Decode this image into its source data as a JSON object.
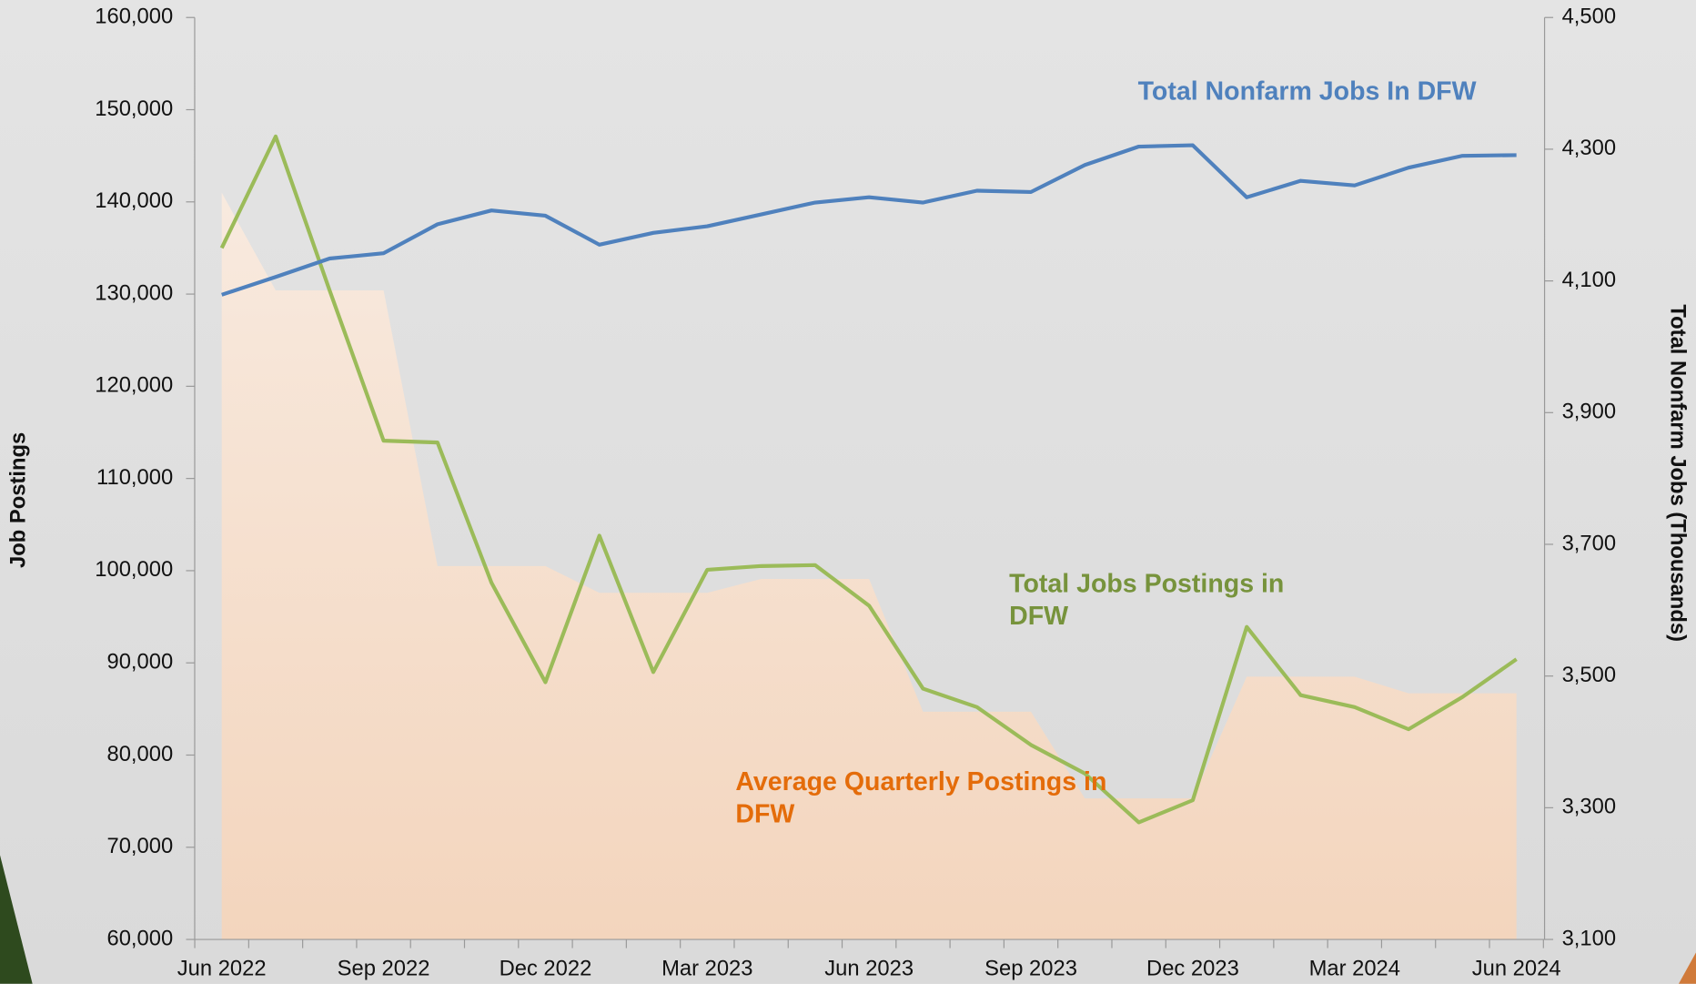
{
  "chart_data": {
    "type": "line",
    "categories": [
      "Jun 2022",
      null,
      null,
      "Sep 2022",
      null,
      null,
      "Dec 2022",
      null,
      null,
      "Mar 2023",
      null,
      null,
      "Jun 2023",
      null,
      null,
      "Sep 2023",
      null,
      null,
      "Dec 2023",
      null,
      null,
      "Mar 2024",
      null,
      null,
      "Jun 2024"
    ],
    "y_label": "Job Postings",
    "y2_label": "Total Nonfarm Jobs (Thousands)",
    "ylim": [
      60000,
      160000
    ],
    "yticks": [
      {
        "value": 60000,
        "label": "60,000"
      },
      {
        "value": 70000,
        "label": "70,000"
      },
      {
        "value": 80000,
        "label": "80,000"
      },
      {
        "value": 90000,
        "label": "90,000"
      },
      {
        "value": 100000,
        "label": "100,000"
      },
      {
        "value": 110000,
        "label": "110,000"
      },
      {
        "value": 120000,
        "label": "120,000"
      },
      {
        "value": 130000,
        "label": "130,000"
      },
      {
        "value": 140000,
        "label": "140,000"
      },
      {
        "value": 150000,
        "label": "150,000"
      },
      {
        "value": 160000,
        "label": "160,000"
      }
    ],
    "y2lim": [
      3100,
      4500
    ],
    "y2ticks": [
      {
        "value": 3100,
        "label": "3,100"
      },
      {
        "value": 3300,
        "label": "3,300"
      },
      {
        "value": 3500,
        "label": "3,500"
      },
      {
        "value": 3700,
        "label": "3,700"
      },
      {
        "value": 3900,
        "label": "3,900"
      },
      {
        "value": 4100,
        "label": "4,100"
      },
      {
        "value": 4300,
        "label": "4,300"
      },
      {
        "value": 4500,
        "label": "4,500"
      }
    ],
    "series": [
      {
        "name": "Average Quarterly Postings in DFW",
        "kind": "area",
        "color": "#e46c0a",
        "values": [
          141000,
          130400,
          130400,
          130400,
          100500,
          100500,
          100500,
          97600,
          97600,
          97600,
          99100,
          99100,
          99100,
          84700,
          84700,
          84700,
          75300,
          75300,
          75300,
          88500,
          88500,
          88500,
          86700,
          86700,
          86700
        ]
      },
      {
        "name": "Total Jobs Postings in DFW",
        "kind": "line",
        "color": "#9bbb59",
        "values": [
          135000,
          147100,
          130400,
          114100,
          113900,
          98700,
          87900,
          103800,
          89000,
          100100,
          100500,
          100600,
          96200,
          87200,
          85200,
          81100,
          78000,
          72700,
          75100,
          93900,
          86500,
          85200,
          82800,
          86300,
          90400
        ]
      },
      {
        "name": "Total Nonfarm Jobs In DFW",
        "kind": "line",
        "color": "#4f81bd",
        "axis": "y2",
        "values": [
          4079,
          4106,
          4134,
          4142,
          4186,
          4207,
          4199,
          4155,
          4173,
          4183,
          4201,
          4219,
          4227,
          4219,
          4237,
          4235,
          4276,
          4304,
          4306,
          4227,
          4252,
          4245,
          4272,
          4290,
          4291
        ]
      }
    ]
  }
}
